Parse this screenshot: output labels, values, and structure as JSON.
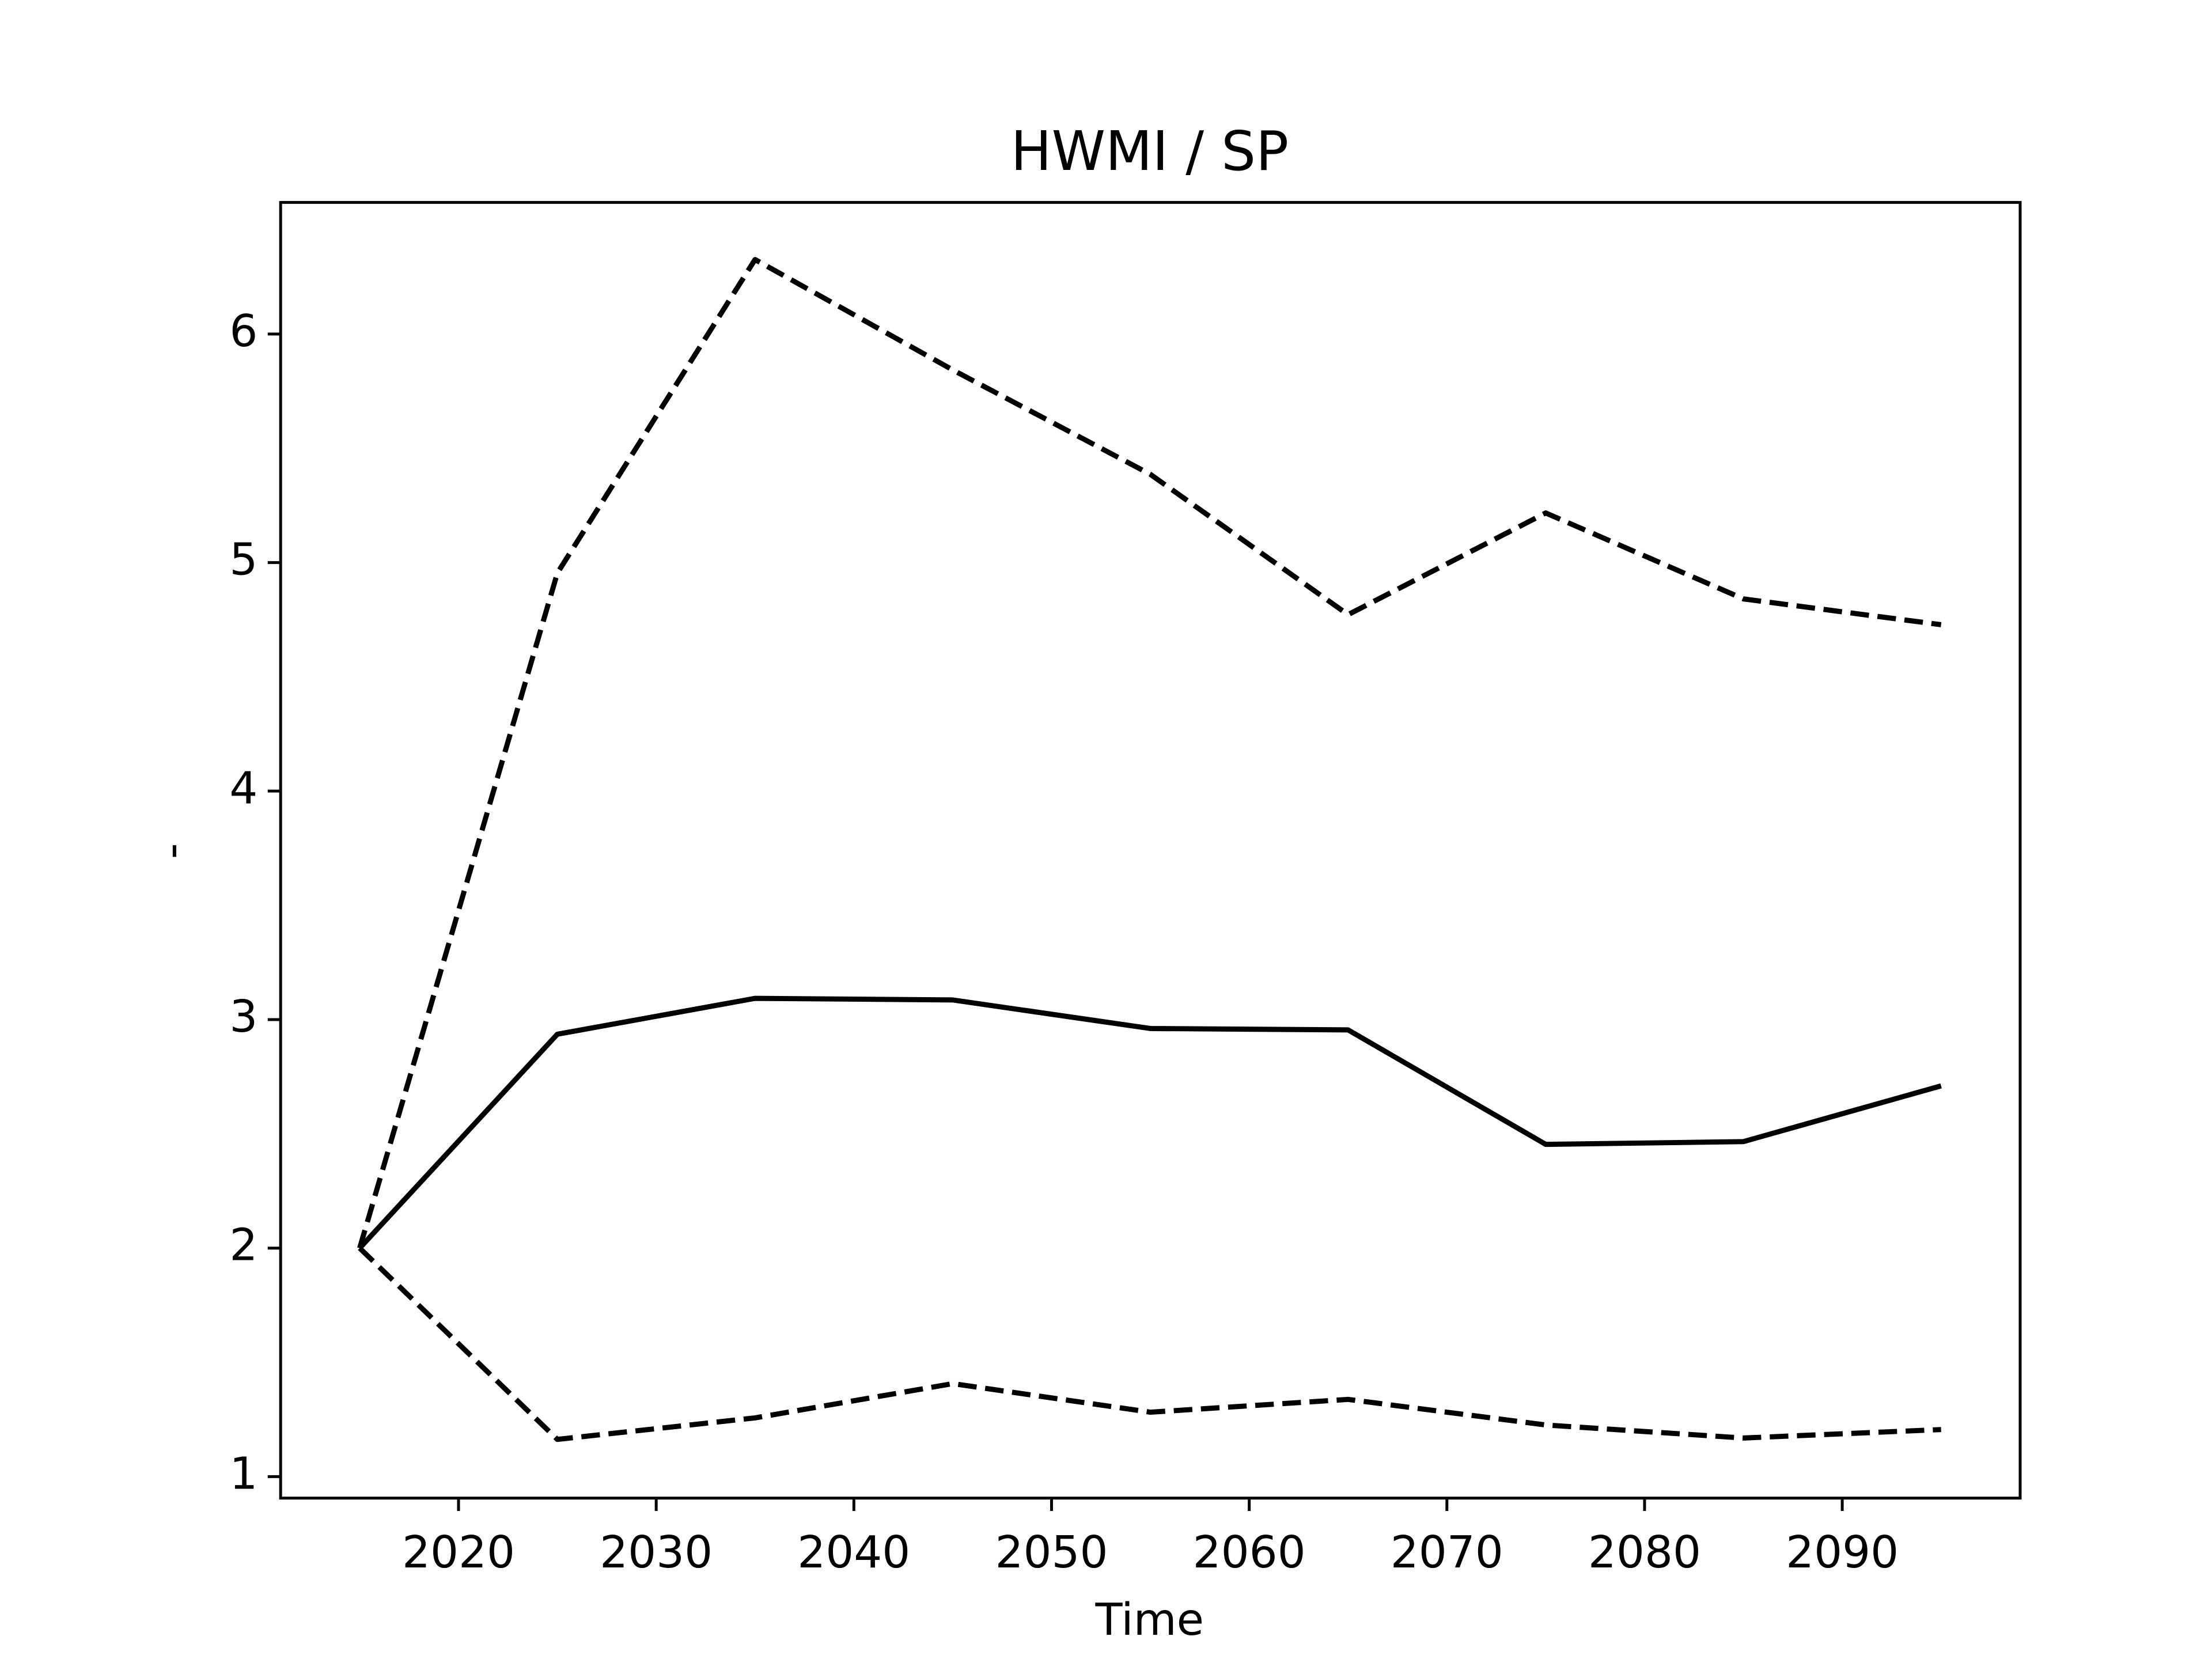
{
  "chart_data": {
    "type": "line",
    "title": "HWMI / SP",
    "xlabel": "Time",
    "ylabel": "-",
    "x": [
      2015,
      2025,
      2035,
      2045,
      2055,
      2065,
      2075,
      2085,
      2095
    ],
    "series": [
      {
        "color": "#000000",
        "linestyle": "solid",
        "values": [
          2.0,
          2.936,
          3.093,
          3.086,
          2.961,
          2.955,
          2.454,
          2.466,
          2.71
        ]
      },
      {
        "color": "#000000",
        "linestyle": "dashed",
        "values": [
          2.0,
          4.954,
          6.326,
          5.843,
          5.386,
          4.772,
          5.217,
          4.841,
          4.728
        ]
      },
      {
        "color": "#000000",
        "linestyle": "dashed",
        "values": [
          2.0,
          1.163,
          1.257,
          1.407,
          1.282,
          1.338,
          1.226,
          1.169,
          1.206
        ]
      }
    ],
    "xlim": [
      2011,
      2099
    ],
    "ylim": [
      0.906,
      6.576
    ],
    "xticks": [
      2020,
      2030,
      2040,
      2050,
      2060,
      2070,
      2080,
      2090
    ],
    "yticks": [
      1,
      2,
      3,
      4,
      5,
      6
    ],
    "grid": false
  }
}
